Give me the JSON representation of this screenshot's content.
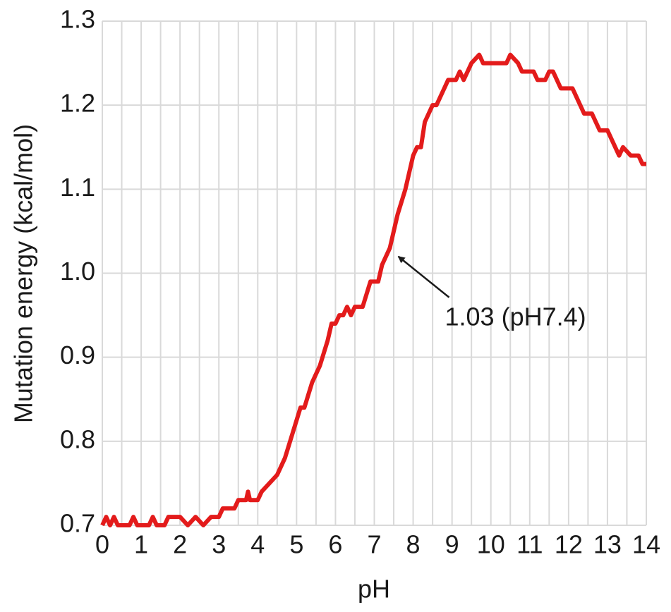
{
  "chart_data": {
    "type": "line",
    "xlabel": "pH",
    "ylabel": "Mutation energy (kcal/mol)",
    "xlim": [
      0,
      14
    ],
    "ylim": [
      0.7,
      1.3
    ],
    "xticks": [
      0,
      1,
      2,
      3,
      4,
      5,
      6,
      7,
      8,
      9,
      10,
      11,
      12,
      13,
      14
    ],
    "xgridlines": [
      0,
      0.5,
      1,
      1.5,
      2,
      2.5,
      3,
      3.5,
      4,
      4.5,
      5,
      5.5,
      6,
      6.5,
      7,
      7.5,
      8,
      8.5,
      9,
      9.5,
      10,
      10.5,
      11,
      11.5,
      12,
      12.5,
      13,
      13.5,
      14
    ],
    "yticks": [
      0.7,
      0.8,
      0.9,
      {
        "value": 1,
        "label": "1.0"
      },
      1.1,
      1.2,
      1.3
    ],
    "grid": true,
    "annotation": {
      "text": "1.03 (pH7.4)",
      "x": 7.4,
      "y": 1.03
    },
    "series": [
      {
        "name": "Mutation energy",
        "color": "#e31b1b",
        "x": [
          0,
          0.1,
          0.2,
          0.3,
          0.4,
          0.7,
          0.8,
          0.9,
          1.2,
          1.3,
          1.4,
          1.6,
          1.7,
          2.0,
          2.2,
          2.4,
          2.6,
          2.8,
          3.0,
          3.1,
          3.4,
          3.5,
          3.7,
          3.75,
          3.8,
          4.0,
          4.1,
          4.3,
          4.5,
          4.7,
          4.9,
          5.1,
          5.2,
          5.4,
          5.6,
          5.8,
          5.9,
          6.0,
          6.1,
          6.2,
          6.3,
          6.4,
          6.5,
          6.7,
          6.9,
          7.1,
          7.2,
          7.4,
          7.6,
          7.8,
          8.0,
          8.1,
          8.2,
          8.3,
          8.5,
          8.6,
          8.8,
          8.9,
          9.1,
          9.2,
          9.3,
          9.5,
          9.7,
          9.8,
          10.4,
          10.5,
          10.7,
          10.8,
          11.1,
          11.2,
          11.4,
          11.5,
          11.6,
          11.8,
          12.1,
          12.4,
          12.6,
          12.8,
          13.0,
          13.3,
          13.4,
          13.6,
          13.8,
          13.9,
          14.0
        ],
        "values": [
          0.7,
          0.71,
          0.7,
          0.71,
          0.7,
          0.7,
          0.71,
          0.7,
          0.7,
          0.71,
          0.7,
          0.7,
          0.71,
          0.71,
          0.7,
          0.71,
          0.7,
          0.71,
          0.71,
          0.72,
          0.72,
          0.73,
          0.73,
          0.74,
          0.73,
          0.73,
          0.74,
          0.75,
          0.76,
          0.78,
          0.81,
          0.84,
          0.84,
          0.87,
          0.89,
          0.92,
          0.94,
          0.94,
          0.95,
          0.95,
          0.96,
          0.95,
          0.96,
          0.96,
          0.99,
          0.99,
          1.01,
          1.03,
          1.07,
          1.1,
          1.14,
          1.15,
          1.15,
          1.18,
          1.2,
          1.2,
          1.22,
          1.23,
          1.23,
          1.24,
          1.23,
          1.25,
          1.26,
          1.25,
          1.25,
          1.26,
          1.25,
          1.24,
          1.24,
          1.23,
          1.23,
          1.24,
          1.24,
          1.22,
          1.22,
          1.19,
          1.19,
          1.17,
          1.17,
          1.14,
          1.15,
          1.14,
          1.14,
          1.13,
          1.13
        ]
      }
    ]
  }
}
